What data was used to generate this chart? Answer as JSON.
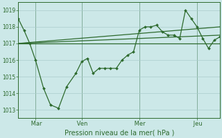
{
  "xlabel": "Pression niveau de la mer( hPa )",
  "bg_color": "#cce8e8",
  "grid_color": "#aacccc",
  "line_color": "#2d6a2d",
  "ylim": [
    1012.5,
    1019.5
  ],
  "xlim": [
    0,
    17.5
  ],
  "yticks": [
    1013,
    1014,
    1015,
    1016,
    1017,
    1018,
    1019
  ],
  "day_labels": [
    " Mar",
    " Ven",
    " Mer",
    " Jeu"
  ],
  "day_positions": [
    1.5,
    5.5,
    10.5,
    15.5
  ],
  "vline_positions": [
    1.5,
    5.5,
    10.5,
    15.5
  ],
  "band_line1_x": [
    0,
    17.5
  ],
  "band_line1_y": [
    1017.0,
    1017.0
  ],
  "band_line2_x": [
    0,
    17.5
  ],
  "band_line2_y": [
    1017.0,
    1017.5
  ],
  "band_line3_x": [
    0,
    17.5
  ],
  "band_line3_y": [
    1017.0,
    1018.0
  ],
  "detailed_line_x": [
    0.0,
    0.5,
    1.0,
    1.5,
    2.2,
    2.8,
    3.5,
    4.2,
    5.0,
    5.5,
    6.0,
    6.5,
    7.0,
    7.5,
    8.0,
    8.5,
    9.0,
    9.5,
    10.0,
    10.5,
    11.0,
    11.5,
    12.0,
    12.5,
    13.0,
    13.5,
    14.0,
    14.5,
    15.0,
    15.5,
    16.0,
    16.5,
    17.0,
    17.5
  ],
  "detailed_line_y": [
    1018.5,
    1017.8,
    1017.0,
    1016.0,
    1014.3,
    1013.3,
    1013.1,
    1014.4,
    1015.2,
    1015.9,
    1016.1,
    1015.2,
    1015.5,
    1015.5,
    1015.5,
    1015.5,
    1016.0,
    1016.3,
    1016.5,
    1017.8,
    1018.0,
    1018.0,
    1018.1,
    1017.7,
    1017.5,
    1017.5,
    1017.3,
    1019.0,
    1018.5,
    1018.0,
    1017.3,
    1016.7,
    1017.2,
    1017.4
  ]
}
